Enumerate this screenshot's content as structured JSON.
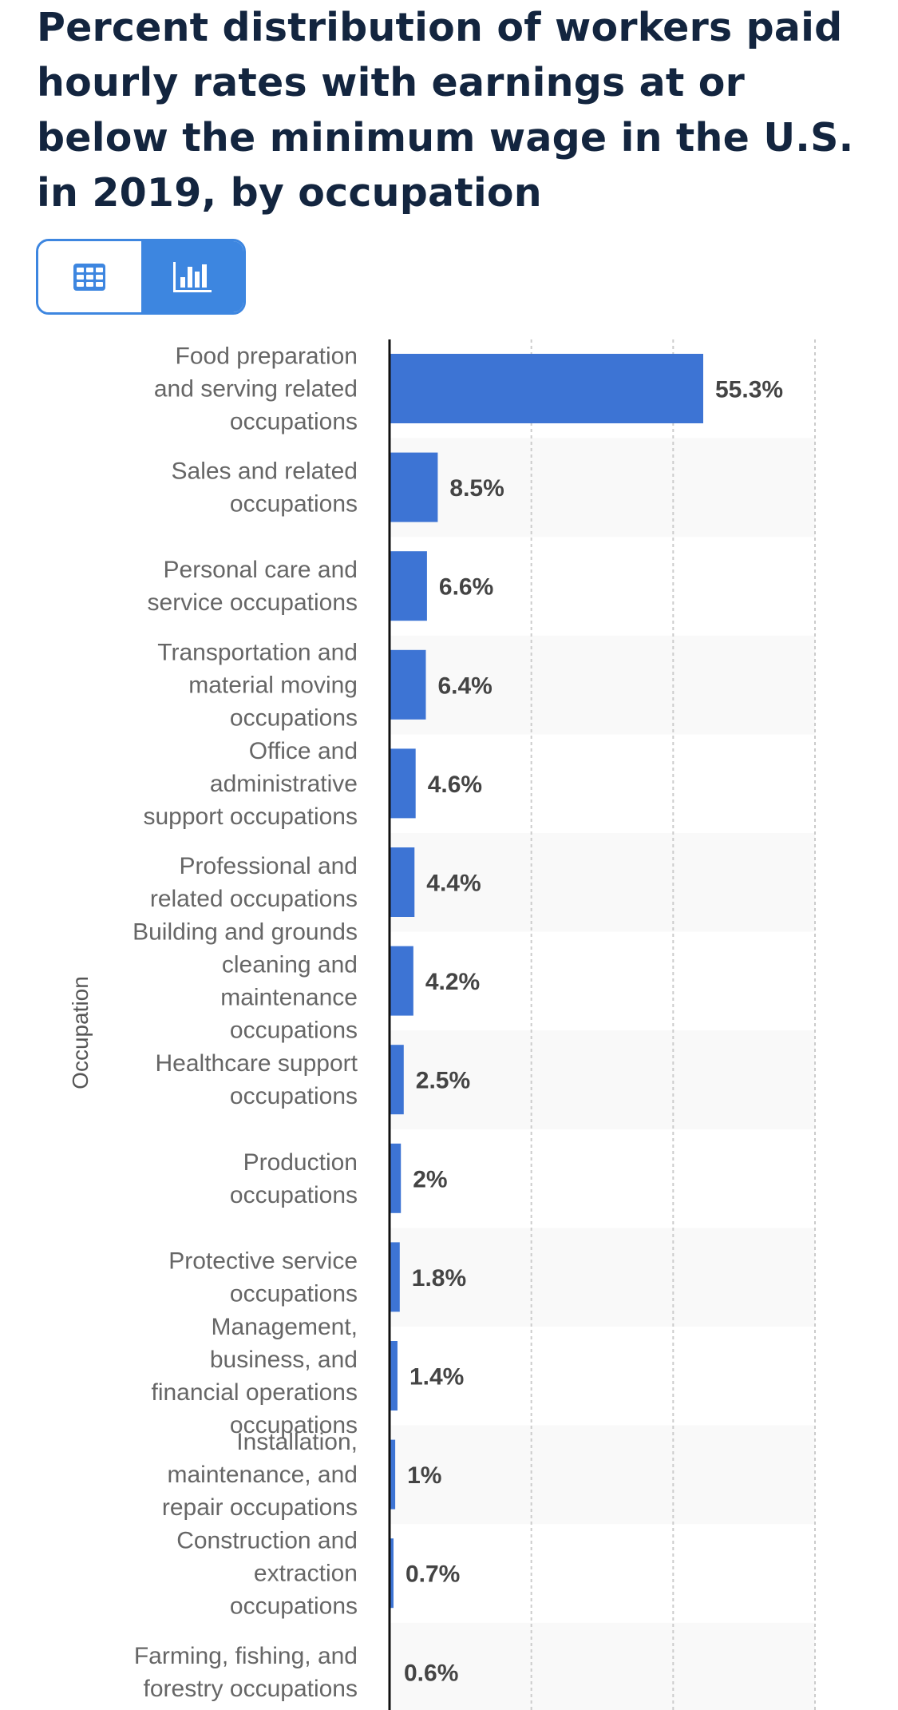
{
  "header": {
    "title": "Percent distribution of workers paid hourly rates with earnings at or below the minimum wage in the U.S. in 2019, by occupation"
  },
  "view_toggle": {
    "options": [
      {
        "name": "table",
        "icon": "table-icon",
        "active": false
      },
      {
        "name": "chart",
        "icon": "bar-chart-icon",
        "active": true
      }
    ]
  },
  "colors": {
    "bar": "#3d74d4",
    "accent": "#3d86e0",
    "title": "#13253f",
    "stripe": "#f9f9f9",
    "gridline": "#cccccc"
  },
  "chart_data": {
    "type": "bar",
    "orientation": "horizontal",
    "title": "Percent distribution of workers paid hourly rates with earnings at or below the minimum wage in the U.S. in 2019, by occupation",
    "xlabel": "",
    "ylabel": "Occupation",
    "xlim": [
      0,
      75
    ],
    "grid": true,
    "gridline_values": [
      25,
      50,
      75
    ],
    "value_suffix": "%",
    "categories": [
      "Food preparation and serving related occupations",
      "Sales and related occupations",
      "Personal care and service occupations",
      "Transportation and material moving occupations",
      "Office and administrative support occupations",
      "Professional and related occupations",
      "Building and grounds cleaning and maintenance occupations",
      "Healthcare support occupations",
      "Production occupations",
      "Protective service occupations",
      "Management, business, and financial operations occupations",
      "Installation, maintenance, and repair occupations",
      "Construction and extraction occupations",
      "Farming, fishing, and forestry occupations"
    ],
    "category_lines": [
      [
        "Food preparation",
        "and serving related",
        "occupations"
      ],
      [
        "Sales and related",
        "occupations"
      ],
      [
        "Personal care and",
        "service occupations"
      ],
      [
        "Transportation and",
        "material moving",
        "occupations"
      ],
      [
        "Office and",
        "administrative",
        "support occupations"
      ],
      [
        "Professional and",
        "related occupations"
      ],
      [
        "Building and grounds",
        "cleaning and",
        "maintenance",
        "occupations"
      ],
      [
        "Healthcare support",
        "occupations"
      ],
      [
        "Production",
        "occupations"
      ],
      [
        "Protective service",
        "occupations"
      ],
      [
        "Management,",
        "business, and",
        "financial operations",
        "occupations"
      ],
      [
        "Installation,",
        "maintenance, and",
        "repair occupations"
      ],
      [
        "Construction and",
        "extraction",
        "occupations"
      ],
      [
        "Farming, fishing, and",
        "forestry occupations"
      ]
    ],
    "values": [
      55.3,
      8.5,
      6.6,
      6.4,
      4.6,
      4.4,
      4.2,
      2.5,
      2,
      1.8,
      1.4,
      1,
      0.7,
      0.6
    ],
    "value_labels": [
      "55.3%",
      "8.5%",
      "6.6%",
      "6.4%",
      "4.6%",
      "4.4%",
      "4.2%",
      "2.5%",
      "2%",
      "1.8%",
      "1.4%",
      "1%",
      "0.7%",
      "0.6%"
    ]
  }
}
